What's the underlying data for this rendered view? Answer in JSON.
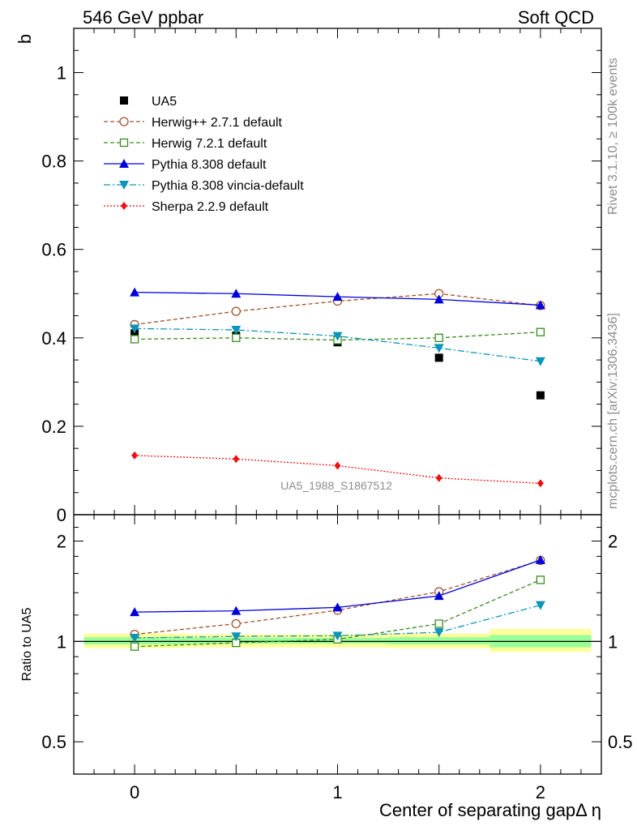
{
  "header": {
    "left_title": "546 GeV ppbar",
    "right_title": "Soft QCD",
    "side_rivet": "Rivet 3.1.10, ≥ 100k events",
    "side_source": "mcplots.cern.ch [arXiv:1306.3436]",
    "watermark": "UA5_1988_S1867512"
  },
  "chart_data": [
    {
      "type": "line",
      "panel": "main",
      "ylabel": "b",
      "xlabel": "",
      "xlim": [
        -0.3,
        2.3
      ],
      "ylim": [
        0,
        1.1
      ],
      "yticks": [
        {
          "v": 0,
          "label": "0"
        },
        {
          "v": 0.2,
          "label": "0.2"
        },
        {
          "v": 0.4,
          "label": "0.4"
        },
        {
          "v": 0.6,
          "label": "0.6"
        },
        {
          "v": 0.8,
          "label": "0.8"
        },
        {
          "v": 1,
          "label": "1"
        }
      ],
      "x": [
        0,
        0.5,
        1,
        1.5,
        2
      ],
      "legend_position": "top-left",
      "series": [
        {
          "name": "UA5",
          "marker": "square-filled",
          "color": "#000000",
          "line": "none",
          "values": [
            0.41,
            0.405,
            0.39,
            0.355,
            0.27
          ]
        },
        {
          "name": "Herwig++ 2.7.1 default",
          "marker": "circle-open",
          "color": "#a0522d",
          "line": "dashed",
          "values": [
            0.43,
            0.46,
            0.483,
            0.5,
            0.473
          ]
        },
        {
          "name": "Herwig 7.2.1 default",
          "marker": "square-open",
          "color": "#3a8c1e",
          "line": "dashed",
          "values": [
            0.397,
            0.4,
            0.395,
            0.4,
            0.413
          ]
        },
        {
          "name": "Pythia 8.308 default",
          "marker": "triangle-up-filled",
          "color": "#0000dd",
          "line": "solid",
          "values": [
            0.503,
            0.5,
            0.493,
            0.487,
            0.474
          ]
        },
        {
          "name": "Pythia 8.308 vincia-default",
          "marker": "triangle-down-filled",
          "color": "#0d95b9",
          "line": "dashdot",
          "values": [
            0.421,
            0.418,
            0.404,
            0.377,
            0.347
          ]
        },
        {
          "name": "Sherpa 2.2.9 default",
          "marker": "diamond-filled",
          "color": "#ee1111",
          "line": "dotted",
          "values": [
            0.134,
            0.126,
            0.111,
            0.083,
            0.071
          ]
        }
      ]
    },
    {
      "type": "line",
      "panel": "ratio",
      "ylabel": "Ratio to UA5",
      "xlabel": "Center of separating gapΔ η",
      "xlim": [
        -0.3,
        2.3
      ],
      "ylim": [
        0.4,
        2.4
      ],
      "scale": "log",
      "yticks": [
        {
          "v": 0.5,
          "label": "0.5"
        },
        {
          "v": 1,
          "label": "1"
        },
        {
          "v": 2,
          "label": "2"
        }
      ],
      "xticks": [
        {
          "v": 0,
          "label": "0"
        },
        {
          "v": 1,
          "label": "1"
        },
        {
          "v": 2,
          "label": "2"
        }
      ],
      "x": [
        0,
        0.5,
        1,
        1.5,
        2
      ],
      "uncertainty_bands": [
        {
          "x0": -0.25,
          "x1": 0.25,
          "stat": [
            0.98,
            1.03
          ],
          "total": [
            0.955,
            1.055
          ]
        },
        {
          "x0": 0.25,
          "x1": 0.75,
          "stat": [
            0.985,
            1.025
          ],
          "total": [
            0.96,
            1.05
          ]
        },
        {
          "x0": 0.75,
          "x1": 1.25,
          "stat": [
            0.985,
            1.025
          ],
          "total": [
            0.96,
            1.05
          ]
        },
        {
          "x0": 1.25,
          "x1": 1.75,
          "stat": [
            0.98,
            1.03
          ],
          "total": [
            0.955,
            1.055
          ]
        },
        {
          "x0": 1.75,
          "x1": 2.25,
          "stat": [
            0.96,
            1.045
          ],
          "total": [
            0.93,
            1.09
          ]
        }
      ],
      "series": [
        {
          "name": "Herwig++ 2.7.1 default",
          "values": [
            1.05,
            1.13,
            1.24,
            1.41,
            1.75
          ]
        },
        {
          "name": "Herwig 7.2.1 default",
          "values": [
            0.965,
            0.99,
            1.015,
            1.13,
            1.53
          ]
        },
        {
          "name": "Pythia 8.308 default",
          "values": [
            1.225,
            1.235,
            1.265,
            1.37,
            1.755
          ]
        },
        {
          "name": "Pythia 8.308 vincia-default",
          "values": [
            1.025,
            1.035,
            1.04,
            1.065,
            1.285
          ]
        }
      ]
    }
  ]
}
